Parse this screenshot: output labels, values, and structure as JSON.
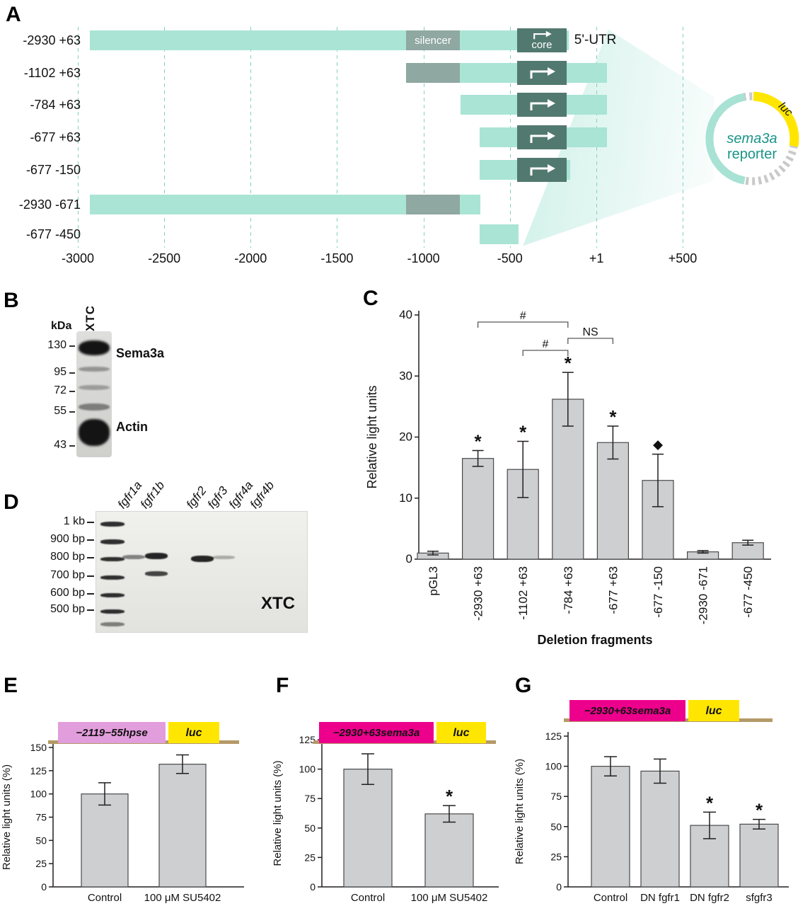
{
  "figure": {
    "panels": {
      "A": {
        "label": "A",
        "axis_ticks": [
          {
            "value": -3000,
            "label": "-3000"
          },
          {
            "value": -2500,
            "label": "-2500"
          },
          {
            "value": -2000,
            "label": "-2000"
          },
          {
            "value": -1500,
            "label": "-1500"
          },
          {
            "value": -1000,
            "label": "-1000"
          },
          {
            "value": -500,
            "label": "-500"
          },
          {
            "value": 1,
            "label": "+1"
          },
          {
            "value": 500,
            "label": "+500"
          }
        ],
        "silencer_label": "silencer",
        "core_label": "core",
        "utr_label": "5'-UTR",
        "silencer_region": [
          -1100,
          -790
        ],
        "core_region": [
          -460,
          -170
        ],
        "constructs": [
          {
            "label": "-2930 +63",
            "start": -2930,
            "end": 63,
            "silencer": true,
            "core": true,
            "show_box_labels": true,
            "utr": true
          },
          {
            "label": "-1102 +63",
            "start": -1102,
            "end": 63,
            "silencer": true,
            "core": true
          },
          {
            "label": "-784 +63",
            "start": -784,
            "end": 63,
            "core": true
          },
          {
            "label": "-677 +63",
            "start": -677,
            "end": 63,
            "core": true
          },
          {
            "label": "-677 -150",
            "start": -677,
            "end": -150,
            "core": true
          },
          {
            "label": "-2930 -671",
            "start": -2930,
            "end": -671,
            "silencer": true
          },
          {
            "label": "-677 -450",
            "start": -677,
            "end": -450
          }
        ],
        "plasmid": {
          "gene": "luc",
          "name": "sema3a",
          "name2": "reporter"
        }
      },
      "B": {
        "label": "B",
        "unit_label": "kDa",
        "lane_label": "XTC",
        "markers": [
          "130",
          "95",
          "72",
          "55",
          "43"
        ],
        "band_labels": [
          "Sema3a",
          "Actin"
        ]
      },
      "C": {
        "label": "C"
      },
      "D": {
        "label": "D",
        "ladder_labels": [
          "1 kb",
          "900 bp",
          "800 bp",
          "700 bp",
          "600 bp",
          "500 bp"
        ],
        "lane_labels": [
          "fgfr1a",
          "fgfr1b",
          "fgfr2",
          "fgfr3",
          "fgfr4a",
          "fgfr4b"
        ],
        "cell_line_label": "XTC"
      },
      "E": {
        "label": "E"
      },
      "F": {
        "label": "F"
      },
      "G": {
        "label": "G"
      }
    },
    "colors": {
      "construct_bar": "#a9e4d5",
      "silencer": "#8fa8a1",
      "core": "#52796f",
      "gridline": "#85cfbf",
      "chart_bar": "#cdcfd1",
      "chart_bar_border": "#4a4a4c",
      "magenta": "#ec008c",
      "pink": "#e29ddc",
      "yellow": "#ffe600",
      "teal_text": "#1a9588",
      "tan": "#b49a68"
    }
  },
  "chart_data": [
    {
      "id": "C",
      "type": "bar",
      "categories": [
        "pGL3",
        "-2930 +63",
        "-1102 +63",
        "-784 +63",
        "-677 +63",
        "-677 -150",
        "-2930 -671",
        "-677 -450"
      ],
      "values": [
        1.0,
        16.5,
        14.7,
        26.2,
        19.1,
        12.9,
        1.2,
        2.7
      ],
      "errors": [
        0.3,
        1.3,
        4.6,
        4.4,
        2.7,
        4.3,
        0.2,
        0.4
      ],
      "annotations": [
        "",
        "*",
        "*",
        "*",
        "*",
        "◆",
        "",
        ""
      ],
      "xlabel": "Deletion fragments",
      "ylabel": "Relative light units",
      "ylim": [
        0,
        40
      ],
      "yticks": [
        0,
        10,
        20,
        30,
        40
      ],
      "brackets": [
        {
          "from": 1,
          "to": 3,
          "label": "#"
        },
        {
          "from": 2,
          "to": 3,
          "label": "#"
        },
        {
          "from": 3,
          "to": 4,
          "label": "NS"
        }
      ]
    },
    {
      "id": "E",
      "type": "bar",
      "categories": [
        "Control",
        "100 μM SU5402"
      ],
      "values": [
        100,
        132
      ],
      "errors": [
        12,
        10
      ],
      "annotations": [
        "",
        ""
      ],
      "ylabel": "Relative light units (%)",
      "ylim": [
        0,
        150
      ],
      "yticks": [
        0,
        25,
        50,
        75,
        100,
        125,
        150
      ],
      "construct": {
        "promoter": "−2119−55hpse",
        "reporter": "luc",
        "color": "#e29ddc"
      }
    },
    {
      "id": "F",
      "type": "bar",
      "categories": [
        "Control",
        "100 μM SU5402"
      ],
      "values": [
        100,
        62
      ],
      "errors": [
        13,
        7
      ],
      "annotations": [
        "",
        "*"
      ],
      "ylabel": "Relative light units (%)",
      "ylim": [
        0,
        125
      ],
      "yticks": [
        0,
        25,
        50,
        75,
        100,
        125
      ],
      "construct": {
        "promoter": "−2930+63sema3a",
        "reporter": "luc",
        "color": "#ec008c"
      }
    },
    {
      "id": "G",
      "type": "bar",
      "categories": [
        "Control",
        "DN fgfr1",
        "DN fgfr2",
        "sfgfr3"
      ],
      "values": [
        100,
        96,
        51,
        52
      ],
      "errors": [
        8,
        10,
        11,
        4
      ],
      "annotations": [
        "",
        "",
        "*",
        "*"
      ],
      "ylabel": "Relative light units (%)",
      "ylim": [
        0,
        125
      ],
      "yticks": [
        0,
        25,
        50,
        75,
        100,
        125
      ],
      "construct": {
        "promoter": "−2930+63sema3a",
        "reporter": "luc",
        "color": "#ec008c"
      }
    }
  ]
}
